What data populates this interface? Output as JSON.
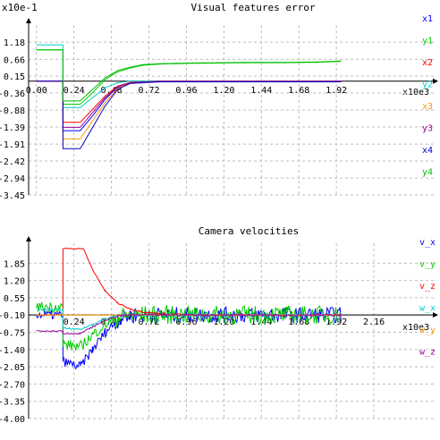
{
  "chart_data": [
    {
      "type": "line",
      "title": "Visual features error",
      "scale_label": "x10e-1",
      "x_scale_label": "x10e3",
      "grid": true,
      "legend": "right",
      "ylim": [
        -3.45,
        1.7
      ],
      "y_ticks": [
        "1.18",
        "0.66",
        "0.15",
        "-0.36",
        "-0.88",
        "-1.39",
        "-1.91",
        "-2.42",
        "-2.94",
        "-3.45"
      ],
      "y_tick_values": [
        1.18,
        0.66,
        0.15,
        -0.36,
        -0.88,
        -1.39,
        -1.91,
        -2.42,
        -2.94,
        -3.45
      ],
      "xlim": [
        -0.05,
        2.4
      ],
      "x_ticks": [
        "0.00",
        "0.24",
        "0.48",
        "0.72",
        "0.96",
        "1.20",
        "1.44",
        "1.68",
        "1.92"
      ],
      "x_tick_values": [
        0.0,
        0.24,
        0.48,
        0.72,
        0.96,
        1.2,
        1.44,
        1.68,
        1.92
      ],
      "series": [
        {
          "name": "x1",
          "color": "#0000ff",
          "x": [
            0,
            0.17,
            0.17,
            0.28,
            0.36,
            0.44,
            0.52,
            0.6,
            0.8,
            1.2,
            1.6,
            1.95
          ],
          "y": [
            0.0,
            0.0,
            -1.5,
            -1.5,
            -1.05,
            -0.55,
            -0.18,
            -0.05,
            0.0,
            0.0,
            0.0,
            0.0
          ]
        },
        {
          "name": "y1",
          "color": "#00cc00",
          "x": [
            0,
            0.17,
            0.17,
            0.28,
            0.36,
            0.44,
            0.52,
            0.6,
            0.68,
            0.8,
            1.0,
            1.2,
            1.4,
            1.6,
            1.8,
            1.95
          ],
          "y": [
            0.95,
            0.95,
            -0.7,
            -0.7,
            -0.35,
            0.05,
            0.28,
            0.4,
            0.48,
            0.52,
            0.54,
            0.55,
            0.56,
            0.56,
            0.57,
            0.6
          ]
        },
        {
          "name": "x2",
          "color": "#ff0000",
          "x": [
            0,
            0.17,
            0.17,
            0.28,
            0.36,
            0.44,
            0.52,
            0.6,
            0.8,
            1.2,
            1.6,
            1.95
          ],
          "y": [
            0.0,
            0.0,
            -1.25,
            -1.25,
            -0.85,
            -0.45,
            -0.15,
            -0.04,
            0.0,
            0.0,
            0.0,
            0.0
          ]
        },
        {
          "name": "y2",
          "color": "#00cccc",
          "x": [
            0,
            0.17,
            0.17,
            0.28,
            0.36,
            0.44,
            0.52,
            0.6,
            0.8,
            1.2,
            1.6,
            1.95
          ],
          "y": [
            1.1,
            1.1,
            -0.8,
            -0.8,
            -0.5,
            -0.2,
            -0.05,
            0.0,
            0.0,
            0.0,
            0.0,
            0.0
          ]
        },
        {
          "name": "x3",
          "color": "#ff9900",
          "x": [
            0,
            0.17,
            0.17,
            0.28,
            0.36,
            0.44,
            0.52,
            0.6,
            0.8,
            1.2,
            1.6,
            1.95
          ],
          "y": [
            0.0,
            0.0,
            -1.75,
            -1.75,
            -1.2,
            -0.65,
            -0.22,
            -0.06,
            0.0,
            0.0,
            0.0,
            0.0
          ]
        },
        {
          "name": "y3",
          "color": "#990099",
          "x": [
            0,
            0.17,
            0.17,
            0.28,
            0.36,
            0.44,
            0.52,
            0.6,
            0.8,
            1.2,
            1.6,
            1.95
          ],
          "y": [
            0.0,
            0.0,
            -1.4,
            -1.4,
            -0.95,
            -0.5,
            -0.17,
            -0.05,
            0.0,
            0.0,
            0.0,
            0.0
          ]
        },
        {
          "name": "x4",
          "color": "#0000cc",
          "x": [
            0,
            0.17,
            0.17,
            0.28,
            0.36,
            0.44,
            0.52,
            0.6,
            0.8,
            1.2,
            1.6,
            1.95
          ],
          "y": [
            0.0,
            0.0,
            -2.05,
            -2.05,
            -1.4,
            -0.75,
            -0.25,
            -0.07,
            -0.02,
            -0.02,
            -0.02,
            -0.02
          ]
        },
        {
          "name": "y4",
          "color": "#00bb00",
          "x": [
            0,
            0.17,
            0.17,
            0.28,
            0.36,
            0.44,
            0.52,
            0.6,
            0.68,
            0.8,
            1.0,
            1.2,
            1.4,
            1.6,
            1.8,
            1.95
          ],
          "y": [
            0.95,
            0.95,
            -0.6,
            -0.6,
            -0.25,
            0.1,
            0.32,
            0.42,
            0.5,
            0.53,
            0.55,
            0.56,
            0.57,
            0.57,
            0.58,
            0.61
          ]
        }
      ]
    },
    {
      "type": "line",
      "title": "Camera velocities",
      "x_scale_label": "x10e3",
      "grid": true,
      "legend": "right",
      "ylim": [
        -4.0,
        2.6
      ],
      "y_ticks": [
        "1.85",
        "1.20",
        "0.55",
        "-0.10",
        "-0.75",
        "-1.40",
        "-2.05",
        "-2.70",
        "-3.35",
        "-4.00"
      ],
      "y_tick_values": [
        1.85,
        1.2,
        0.55,
        -0.1,
        -0.75,
        -1.4,
        -2.05,
        -2.7,
        -3.35,
        -4.0
      ],
      "xlim": [
        -0.05,
        2.4
      ],
      "x_ticks": [
        "0.24",
        "0.48",
        "0.72",
        "0.96",
        "1.20",
        "1.44",
        "1.68",
        "1.92",
        "2.16"
      ],
      "x_tick_values": [
        0.24,
        0.48,
        0.72,
        0.96,
        1.2,
        1.44,
        1.68,
        1.92,
        2.16
      ],
      "series": [
        {
          "name": "v_x",
          "color": "#0000ff",
          "x": [
            0,
            0.17,
            0.17,
            0.28,
            0.36,
            0.44,
            0.52,
            0.6,
            0.8,
            1.2,
            1.6,
            1.95
          ],
          "y": [
            -0.1,
            -0.1,
            -1.85,
            -2.05,
            -1.4,
            -0.75,
            -0.3,
            -0.12,
            -0.1,
            -0.1,
            -0.1,
            -0.1
          ],
          "noise": 0.3
        },
        {
          "name": "v_y",
          "color": "#00cc00",
          "x": [
            0,
            0.17,
            0.17,
            0.28,
            0.36,
            0.44,
            0.52,
            0.6,
            0.8,
            1.2,
            1.6,
            1.95
          ],
          "y": [
            0.2,
            0.2,
            -1.2,
            -1.3,
            -0.85,
            -0.45,
            -0.2,
            -0.1,
            -0.1,
            -0.1,
            -0.1,
            -0.1
          ],
          "noise": 0.35
        },
        {
          "name": "v_z",
          "color": "#ff0000",
          "x": [
            0,
            0.17,
            0.17,
            0.3,
            0.36,
            0.44,
            0.52,
            0.6,
            0.7,
            0.8,
            1.0,
            1.2,
            1.6,
            1.95
          ],
          "y": [
            -0.1,
            -0.1,
            2.4,
            2.4,
            1.6,
            0.8,
            0.35,
            0.12,
            0.0,
            -0.05,
            -0.1,
            -0.1,
            -0.1,
            -0.1
          ],
          "noise": 0.03
        },
        {
          "name": "w_x",
          "color": "#00cccc",
          "x": [
            0,
            0.17,
            0.17,
            0.28,
            0.36,
            0.44,
            0.52,
            0.6,
            0.8,
            1.2,
            1.6,
            1.95
          ],
          "y": [
            0.1,
            0.1,
            -0.6,
            -0.65,
            -0.45,
            -0.25,
            -0.12,
            -0.1,
            -0.1,
            -0.1,
            -0.1,
            -0.1
          ],
          "noise": 0.05
        },
        {
          "name": "w_y",
          "color": "#ff9900",
          "x": [
            0,
            0.17,
            0.17,
            0.28,
            0.36,
            0.44,
            0.52,
            0.6,
            0.8,
            1.2,
            1.6,
            1.95
          ],
          "y": [
            -0.1,
            -0.1,
            -0.1,
            -0.1,
            -0.1,
            -0.1,
            -0.1,
            -0.1,
            -0.1,
            -0.1,
            -0.1,
            -0.1
          ],
          "noise": 0.02
        },
        {
          "name": "w_z",
          "color": "#990099",
          "x": [
            0,
            0.17,
            0.17,
            0.28,
            0.36,
            0.44,
            0.52,
            0.6,
            0.8,
            1.2,
            1.6,
            1.95
          ],
          "y": [
            -0.7,
            -0.7,
            -0.8,
            -0.8,
            -0.55,
            -0.3,
            -0.15,
            -0.1,
            -0.1,
            -0.1,
            -0.1,
            -0.1
          ],
          "noise": 0.04
        }
      ]
    }
  ]
}
